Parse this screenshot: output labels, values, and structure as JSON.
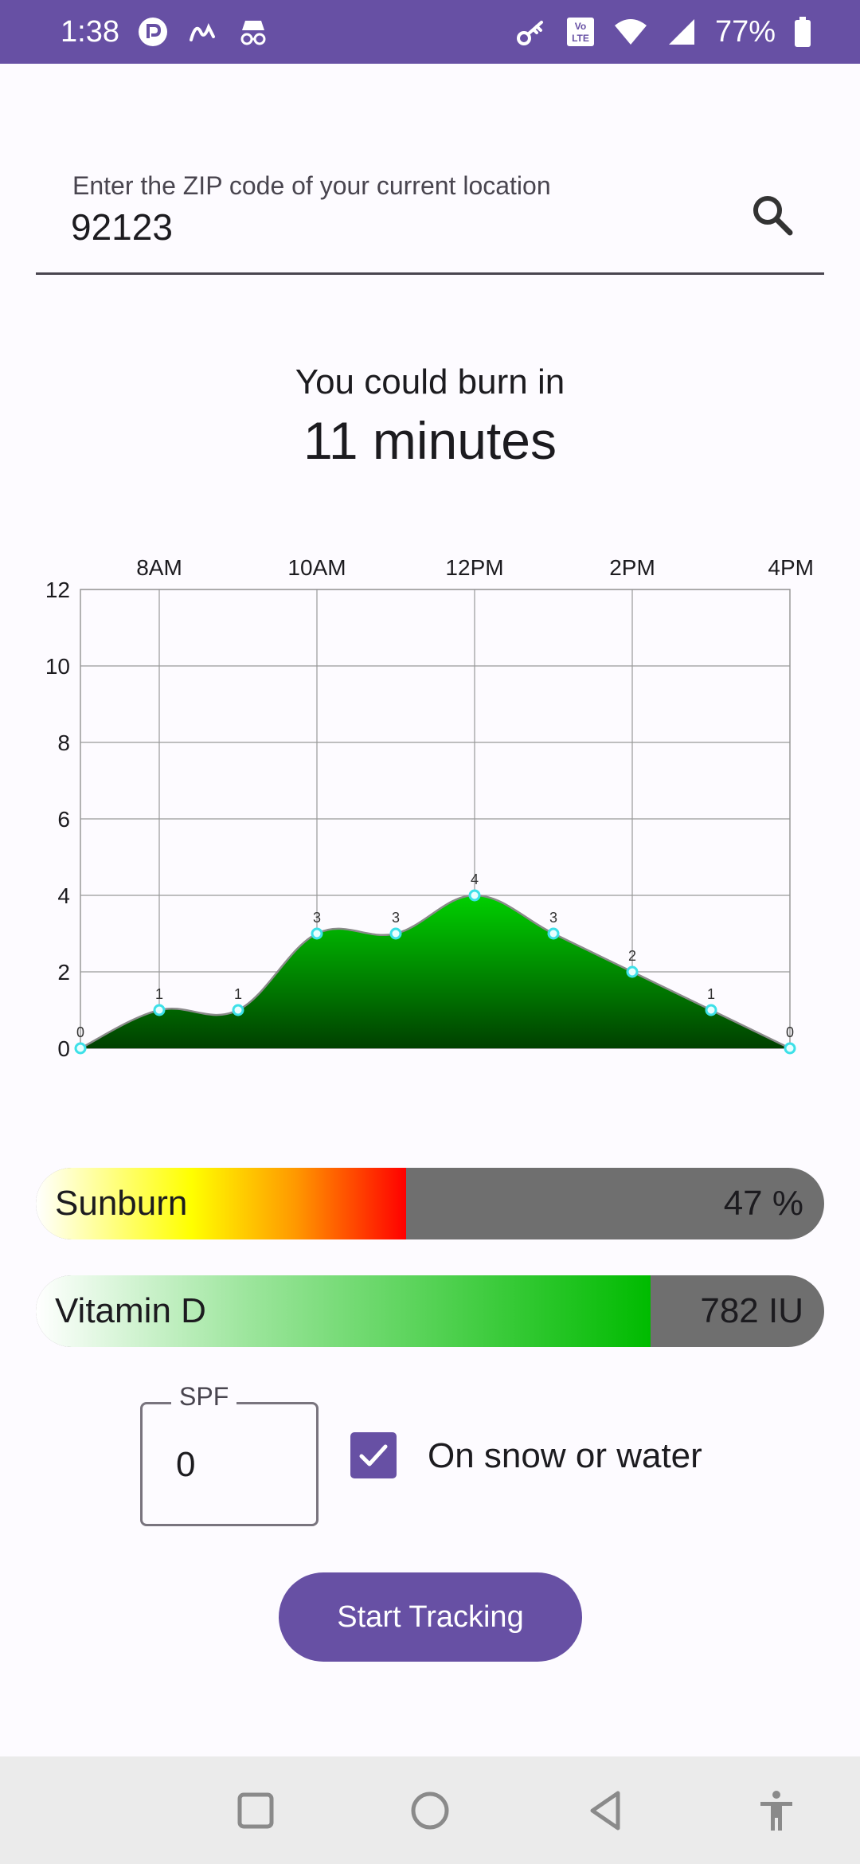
{
  "status_bar": {
    "time": "1:38",
    "battery": "77%",
    "left_icons": [
      "messenger-icon",
      "signature-icon",
      "incognito-icon"
    ],
    "right_icons": [
      "key-icon",
      "volte-icon",
      "wifi-icon",
      "signal-icon",
      "battery-icon"
    ]
  },
  "search": {
    "label": "Enter the ZIP code of your current location",
    "value": "92123",
    "icon": "search-icon"
  },
  "burn": {
    "caption": "You could burn in",
    "value": "11 minutes"
  },
  "chart_data": {
    "type": "area",
    "x": [
      "7AM",
      "8AM",
      "9AM",
      "10AM",
      "11AM",
      "12PM",
      "1PM",
      "2PM",
      "3PM",
      "4PM"
    ],
    "values": [
      0,
      1,
      1,
      3,
      3,
      4,
      3,
      2,
      1,
      0
    ],
    "point_labels": [
      "0",
      "1",
      "1",
      "3",
      "3",
      "4",
      "3",
      "2",
      "1",
      "0"
    ],
    "x_tick_labels": [
      "8AM",
      "10AM",
      "12PM",
      "2PM",
      "4PM"
    ],
    "y_tick_labels": [
      "0",
      "2",
      "4",
      "6",
      "8",
      "10",
      "12"
    ],
    "ylim": [
      0,
      12
    ],
    "grid": true,
    "title": "",
    "xlabel": "",
    "ylabel": "",
    "colors": {
      "fill_top": "#00d000",
      "fill_bottom": "#004000",
      "line": "#8a8a8a",
      "marker": "#3de0e8"
    }
  },
  "sunburn": {
    "label": "Sunburn",
    "value": "47 %",
    "fraction": 0.47
  },
  "vitamin_d": {
    "label": "Vitamin D",
    "value": "782 IU",
    "fraction": 0.78
  },
  "spf": {
    "label": "SPF",
    "value": "0"
  },
  "snow": {
    "label": "On snow or water",
    "checked": true
  },
  "start_button": {
    "label": "Start Tracking"
  },
  "nav": {
    "icons": [
      "recents-icon",
      "home-icon",
      "back-icon",
      "accessibility-icon"
    ]
  }
}
